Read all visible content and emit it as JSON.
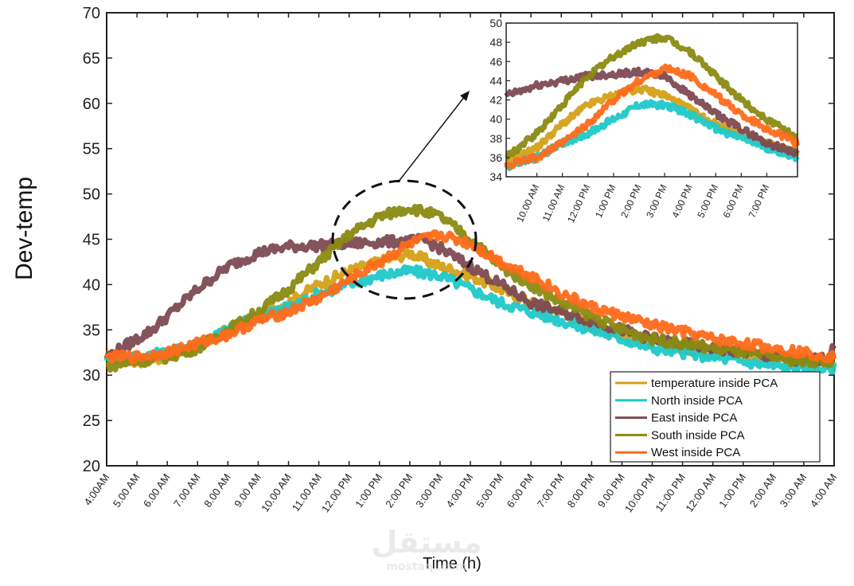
{
  "chart_data": {
    "type": "line",
    "xlabel": "Time (h)",
    "ylabel": "Dev-temp",
    "ylim": [
      20,
      70
    ],
    "yticks": [
      20,
      25,
      30,
      35,
      40,
      45,
      50,
      55,
      60,
      65,
      70
    ],
    "xticks": [
      "4:00AM",
      "5.00 AM",
      "6.00 AM",
      "7.00 AM",
      "8.00 AM",
      "9.00 AM",
      "10.00 AM",
      "11.00 AM",
      "12.00 PM",
      "1:00 PM",
      "2:00 PM",
      "3:00 PM",
      "4:00 PM",
      "5:00 PM",
      "6:00 PM",
      "7:00 PM",
      "8:00 PM",
      "9.00 PM",
      "10:00 PM",
      "11:00 PM",
      "12:00 AM",
      "1:00 PM",
      "2:00 AM",
      "3:00 AM",
      "4:00 AM"
    ],
    "x_hours": [
      0,
      1,
      2,
      3,
      4,
      5,
      6,
      7,
      8,
      9,
      10,
      11,
      12,
      13,
      14,
      15,
      16,
      17,
      18,
      19,
      20,
      21,
      22,
      23,
      24
    ],
    "grid": false,
    "legend_position": "bottom-right",
    "series": [
      {
        "name": "temperature inside PCA",
        "color": "#d4a017",
        "x": [
          0,
          1,
          2,
          3,
          4,
          5,
          6,
          7,
          8,
          9,
          10,
          11,
          12,
          13,
          14,
          15,
          16,
          17,
          18,
          19,
          20,
          21,
          22,
          23,
          24
        ],
        "values": [
          32,
          31.5,
          32,
          33,
          35,
          36.5,
          38,
          40,
          41.5,
          42.5,
          43.5,
          42,
          41,
          39.5,
          38,
          37,
          35.5,
          34.5,
          33.5,
          33,
          32.5,
          32.5,
          32,
          31.5,
          31.5
        ]
      },
      {
        "name": "North inside PCA",
        "color": "#1fc8c8",
        "x": [
          0,
          1,
          2,
          3,
          4,
          5,
          6,
          7,
          8,
          9,
          10,
          11,
          12,
          13,
          14,
          15,
          16,
          17,
          18,
          19,
          20,
          21,
          22,
          23,
          24
        ],
        "values": [
          32,
          32,
          32.5,
          33.5,
          35,
          36.5,
          37.5,
          39,
          40,
          41,
          41.5,
          41,
          39.5,
          38,
          37,
          36,
          35,
          34,
          33,
          32.5,
          32,
          31.5,
          31,
          30.8,
          30.8
        ]
      },
      {
        "name": "East inside PCA",
        "color": "#7d4a52",
        "x": [
          0,
          0.5,
          1,
          1.5,
          2,
          3,
          4,
          5,
          6,
          7,
          8,
          9,
          10,
          10.5,
          11,
          12,
          13,
          14,
          15,
          16,
          17,
          18,
          19,
          20,
          21,
          22,
          23,
          23.8,
          24
        ],
        "values": [
          32,
          33,
          34,
          35,
          36.5,
          39.5,
          42,
          43.5,
          44.2,
          44.3,
          44.5,
          44.7,
          44.8,
          44.9,
          44,
          42,
          40,
          38,
          37,
          36,
          35,
          34,
          33.5,
          33,
          32.5,
          32,
          31.5,
          32,
          33
        ]
      },
      {
        "name": "South inside PCA",
        "color": "#8a8a12",
        "x": [
          0,
          1,
          2,
          3,
          4,
          5,
          6,
          7,
          8,
          9,
          10,
          11,
          12,
          13,
          14,
          15,
          16,
          17,
          18,
          19,
          20,
          21,
          22,
          23,
          24
        ],
        "values": [
          31,
          31.5,
          32,
          33,
          35,
          37,
          39.5,
          42.5,
          45.5,
          47.5,
          48.5,
          47.5,
          45,
          42,
          40,
          38,
          36.5,
          35,
          34,
          33.5,
          33,
          32.5,
          32,
          31.5,
          31.5
        ]
      },
      {
        "name": "West inside PCA",
        "color": "#ff6a1a",
        "x": [
          0,
          1,
          2,
          3,
          4,
          5,
          6,
          7,
          8,
          9,
          10,
          11,
          12,
          13,
          14,
          15,
          16,
          17,
          18,
          19,
          20,
          21,
          22,
          23,
          24
        ],
        "values": [
          32,
          32,
          32.5,
          33.5,
          34.5,
          36,
          37,
          38.5,
          40.5,
          42.5,
          44.5,
          45.5,
          44.5,
          42.5,
          41,
          39,
          37.5,
          36.5,
          35.5,
          34.8,
          34,
          33.5,
          33,
          32.5,
          32
        ]
      }
    ],
    "inset": {
      "ylim": [
        34,
        50
      ],
      "yticks": [
        34,
        36,
        38,
        40,
        42,
        44,
        46,
        48,
        50
      ],
      "xticks": [
        "10.00 AM",
        "11.00 AM",
        "12:00 PM",
        "1:00 PM",
        "2:00 PM",
        "3:00 PM",
        "4:00 PM",
        "5:00 PM",
        "6:00 PM",
        "7:00 PM"
      ],
      "x_hours": [
        6,
        7,
        8,
        9,
        10,
        11,
        12,
        13,
        14,
        15
      ],
      "xlim": [
        4.8,
        16.2
      ],
      "series": [
        {
          "name": "temperature inside PCA",
          "color": "#d4a017",
          "x": [
            4.8,
            6,
            7,
            8,
            9,
            10,
            11,
            12,
            13,
            14,
            15,
            16.2
          ],
          "values": [
            35.5,
            37,
            39.5,
            41.5,
            42.5,
            43.2,
            42.5,
            41,
            39.5,
            38.5,
            37.5,
            36.5
          ]
        },
        {
          "name": "North inside PCA",
          "color": "#1fc8c8",
          "x": [
            4.8,
            6,
            7,
            8,
            9,
            10,
            11,
            12,
            13,
            14,
            15,
            16.2
          ],
          "values": [
            35,
            36,
            37.5,
            38.5,
            40,
            41.5,
            41.5,
            40.5,
            39,
            38,
            37,
            36
          ]
        },
        {
          "name": "East inside PCA",
          "color": "#7d4a52",
          "x": [
            4.8,
            5.5,
            6,
            7,
            8,
            9,
            10,
            11,
            12,
            13,
            14,
            15,
            16.2
          ],
          "values": [
            42.5,
            43,
            43.5,
            44,
            44.5,
            44.7,
            44.9,
            44.5,
            42.5,
            40.5,
            39,
            37.5,
            36.5
          ]
        },
        {
          "name": "South inside PCA",
          "color": "#8a8a12",
          "x": [
            4.8,
            6,
            7,
            8,
            9,
            10,
            11,
            12,
            13,
            14,
            15,
            16.2
          ],
          "values": [
            36,
            38.5,
            41.5,
            44.5,
            46.5,
            48,
            48.5,
            47,
            44.5,
            42,
            40,
            38
          ]
        },
        {
          "name": "West inside PCA",
          "color": "#ff6a1a",
          "x": [
            4.8,
            6,
            7,
            8,
            9,
            10,
            11,
            12,
            13,
            14,
            15,
            16.2
          ],
          "values": [
            35.2,
            36,
            37.5,
            39.5,
            42,
            44,
            45.3,
            44.5,
            42.5,
            40.5,
            39,
            37.5
          ]
        }
      ]
    }
  },
  "watermark": {
    "arabic": "مستقل",
    "latin": "mostaql.com"
  }
}
